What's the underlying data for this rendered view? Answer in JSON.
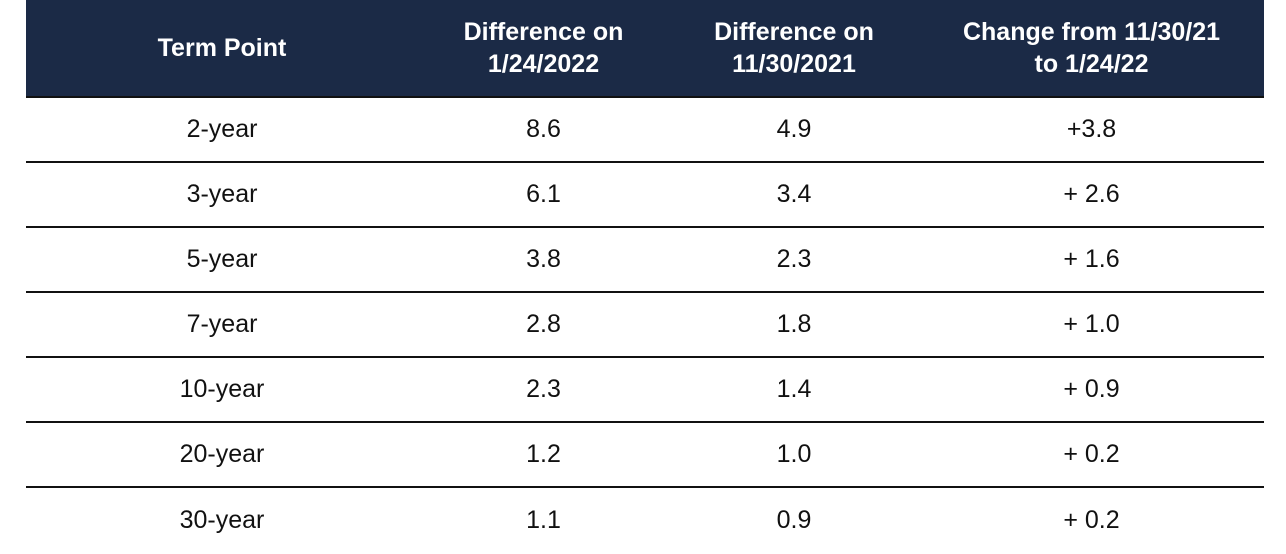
{
  "header": {
    "col1": "Term Point",
    "col2_line1": "Difference on",
    "col2_line2": "1/24/2022",
    "col3_line1": "Difference on",
    "col3_line2": "11/30/2021",
    "col4_line1": "Change from 11/30/21",
    "col4_line2": "to 1/24/22"
  },
  "colors": {
    "header_bg": "#1b2a46",
    "header_text": "#ffffff",
    "row_border": "#111111"
  },
  "rows": [
    {
      "term": "2-year",
      "d1": "8.6",
      "d2": "4.9",
      "change": "+3.8"
    },
    {
      "term": "3-year",
      "d1": "6.1",
      "d2": "3.4",
      "change": "+ 2.6"
    },
    {
      "term": "5-year",
      "d1": "3.8",
      "d2": "2.3",
      "change": "+ 1.6"
    },
    {
      "term": "7-year",
      "d1": "2.8",
      "d2": "1.8",
      "change": "+ 1.0"
    },
    {
      "term": "10-year",
      "d1": "2.3",
      "d2": "1.4",
      "change": "+ 0.9"
    },
    {
      "term": "20-year",
      "d1": "1.2",
      "d2": "1.0",
      "change": "+ 0.2"
    },
    {
      "term": "30-year",
      "d1": "1.1",
      "d2": "0.9",
      "change": "+ 0.2"
    }
  ]
}
